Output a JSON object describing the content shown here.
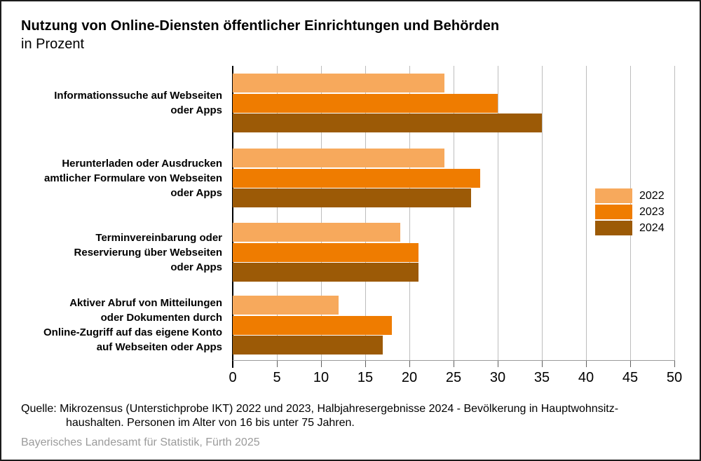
{
  "title": "Nutzung von Online-Diensten öffentlicher Einrichtungen und Behörden",
  "subtitle": "in Prozent",
  "chart_data": {
    "type": "bar",
    "orientation": "horizontal",
    "title": "Nutzung von Online-Diensten öffentlicher Einrichtungen und Behörden",
    "subtitle": "in Prozent",
    "categories": [
      [
        "Informationssuche auf Webseiten",
        "oder Apps"
      ],
      [
        "Herunterladen oder Ausdrucken",
        "amtlicher Formulare von Webseiten",
        "oder Apps"
      ],
      [
        "Terminvereinbarung oder",
        "Reservierung über Webseiten",
        "oder Apps"
      ],
      [
        "Aktiver Abruf von Mitteilungen",
        "oder Dokumenten durch",
        "Online-Zugriff auf das eigene Konto",
        "auf Webseiten oder Apps"
      ]
    ],
    "series": [
      {
        "name": "2022",
        "color": "#F7A95C",
        "values": [
          24,
          24,
          19,
          12
        ]
      },
      {
        "name": "2023",
        "color": "#EF7C00",
        "values": [
          30,
          28,
          21,
          18
        ]
      },
      {
        "name": "2024",
        "color": "#9C5A06",
        "values": [
          35,
          27,
          21,
          17
        ]
      }
    ],
    "xlim": [
      0,
      50
    ],
    "xticks": [
      0,
      5,
      10,
      15,
      20,
      25,
      30,
      35,
      40,
      45,
      50
    ],
    "grid": "vertical",
    "legend_position": "right-middle"
  },
  "source": {
    "line1": "Quelle: Mikrozensus (Unterstichprobe IKT) 2022 und 2023, Halbjahresergebnisse 2024 - Bevölkerung in Hauptwohnsitz-",
    "line2": "haushalten. Personen im Alter von 16 bis unter 75 Jahren."
  },
  "footer": "Bayerisches Landesamt für Statistik, Fürth 2025",
  "colors": {
    "grid": "#bdbdbd",
    "axis": "#000000",
    "baseline": "#9a9a9a",
    "tick": "#5f5f5f",
    "footer_text": "#9b9b9b",
    "background": "#ffffff"
  }
}
